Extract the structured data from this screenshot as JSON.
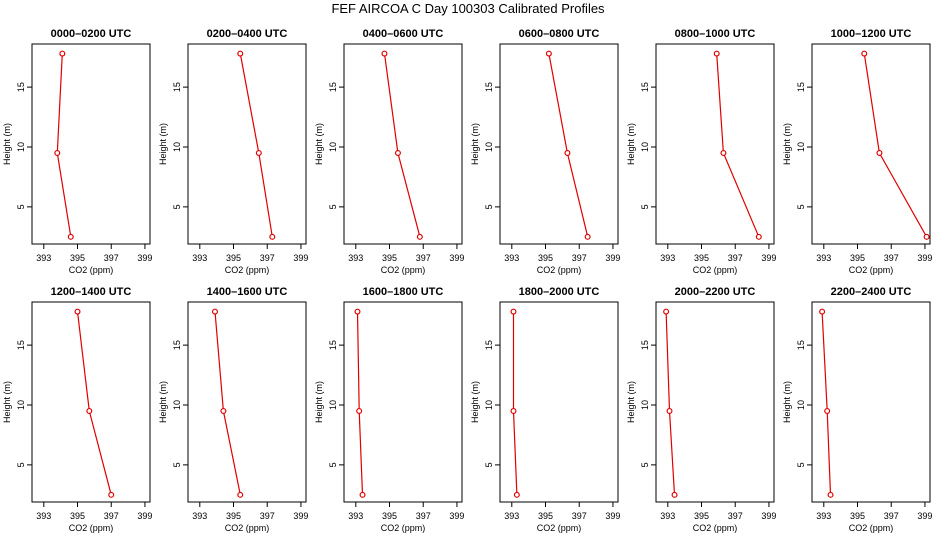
{
  "title": "FEF AIRCOA C  Day 100303  Calibrated Profiles",
  "colors": {
    "series": "#e00000",
    "axis": "#000000",
    "background": "#ffffff"
  },
  "chart_data": [
    {
      "type": "line",
      "title": "0000–0200 UTC",
      "xlabel": "CO2 (ppm)",
      "ylabel": "Height (m)",
      "xlim": [
        392.3,
        399.3
      ],
      "ylim": [
        1.9,
        18.6
      ],
      "xticks": [
        393,
        395,
        397,
        399
      ],
      "yticks": [
        5,
        10,
        15
      ],
      "x": [
        394.6,
        393.8,
        394.1
      ],
      "y": [
        2.5,
        9.5,
        17.8
      ]
    },
    {
      "type": "line",
      "title": "0200–0400 UTC",
      "xlabel": "CO2 (ppm)",
      "ylabel": "Height (m)",
      "xlim": [
        392.3,
        399.3
      ],
      "ylim": [
        1.9,
        18.6
      ],
      "xticks": [
        393,
        395,
        397,
        399
      ],
      "yticks": [
        5,
        10,
        15
      ],
      "x": [
        397.3,
        396.5,
        395.4
      ],
      "y": [
        2.5,
        9.5,
        17.8
      ]
    },
    {
      "type": "line",
      "title": "0400–0600 UTC",
      "xlabel": "CO2 (ppm)",
      "ylabel": "Height (m)",
      "xlim": [
        392.3,
        399.3
      ],
      "ylim": [
        1.9,
        18.6
      ],
      "xticks": [
        393,
        395,
        397,
        399
      ],
      "yticks": [
        5,
        10,
        15
      ],
      "x": [
        396.8,
        395.5,
        394.7
      ],
      "y": [
        2.5,
        9.5,
        17.8
      ]
    },
    {
      "type": "line",
      "title": "0600–0800 UTC",
      "xlabel": "CO2 (ppm)",
      "ylabel": "Height (m)",
      "xlim": [
        392.3,
        399.3
      ],
      "ylim": [
        1.9,
        18.6
      ],
      "xticks": [
        393,
        395,
        397,
        399
      ],
      "yticks": [
        5,
        10,
        15
      ],
      "x": [
        397.5,
        396.3,
        395.2
      ],
      "y": [
        2.5,
        9.5,
        17.8
      ]
    },
    {
      "type": "line",
      "title": "0800–1000 UTC",
      "xlabel": "CO2 (ppm)",
      "ylabel": "Height (m)",
      "xlim": [
        392.3,
        399.3
      ],
      "ylim": [
        1.9,
        18.6
      ],
      "xticks": [
        393,
        395,
        397,
        399
      ],
      "yticks": [
        5,
        10,
        15
      ],
      "x": [
        398.4,
        396.3,
        395.9
      ],
      "y": [
        2.5,
        9.5,
        17.8
      ]
    },
    {
      "type": "line",
      "title": "1000–1200 UTC",
      "xlabel": "CO2 (ppm)",
      "ylabel": "Height (m)",
      "xlim": [
        392.3,
        399.3
      ],
      "ylim": [
        1.9,
        18.6
      ],
      "xticks": [
        393,
        395,
        397,
        399
      ],
      "yticks": [
        5,
        10,
        15
      ],
      "x": [
        399.1,
        396.3,
        395.4
      ],
      "y": [
        2.5,
        9.5,
        17.8
      ]
    },
    {
      "type": "line",
      "title": "1200–1400 UTC",
      "xlabel": "CO2 (ppm)",
      "ylabel": "Height (m)",
      "xlim": [
        392.3,
        399.3
      ],
      "ylim": [
        1.9,
        18.6
      ],
      "xticks": [
        393,
        395,
        397,
        399
      ],
      "yticks": [
        5,
        10,
        15
      ],
      "x": [
        397.0,
        395.7,
        395.0
      ],
      "y": [
        2.5,
        9.5,
        17.8
      ]
    },
    {
      "type": "line",
      "title": "1400–1600 UTC",
      "xlabel": "CO2 (ppm)",
      "ylabel": "Height (m)",
      "xlim": [
        392.3,
        399.3
      ],
      "ylim": [
        1.9,
        18.6
      ],
      "xticks": [
        393,
        395,
        397,
        399
      ],
      "yticks": [
        5,
        10,
        15
      ],
      "x": [
        395.4,
        394.4,
        393.9
      ],
      "y": [
        2.5,
        9.5,
        17.8
      ]
    },
    {
      "type": "line",
      "title": "1600–1800 UTC",
      "xlabel": "CO2 (ppm)",
      "ylabel": "Height (m)",
      "xlim": [
        392.3,
        399.3
      ],
      "ylim": [
        1.9,
        18.6
      ],
      "xticks": [
        393,
        395,
        397,
        399
      ],
      "yticks": [
        5,
        10,
        15
      ],
      "x": [
        393.4,
        393.2,
        393.1
      ],
      "y": [
        2.5,
        9.5,
        17.8
      ]
    },
    {
      "type": "line",
      "title": "1800–2000 UTC",
      "xlabel": "CO2 (ppm)",
      "ylabel": "Height (m)",
      "xlim": [
        392.3,
        399.3
      ],
      "ylim": [
        1.9,
        18.6
      ],
      "xticks": [
        393,
        395,
        397,
        399
      ],
      "yticks": [
        5,
        10,
        15
      ],
      "x": [
        393.3,
        393.1,
        393.1
      ],
      "y": [
        2.5,
        9.5,
        17.8
      ]
    },
    {
      "type": "line",
      "title": "2000–2200 UTC",
      "xlabel": "CO2 (ppm)",
      "ylabel": "Height (m)",
      "xlim": [
        392.3,
        399.3
      ],
      "ylim": [
        1.9,
        18.6
      ],
      "xticks": [
        393,
        395,
        397,
        399
      ],
      "yticks": [
        5,
        10,
        15
      ],
      "x": [
        393.4,
        393.1,
        392.9
      ],
      "y": [
        2.5,
        9.5,
        17.8
      ]
    },
    {
      "type": "line",
      "title": "2200–2400 UTC",
      "xlabel": "CO2 (ppm)",
      "ylabel": "Height (m)",
      "xlim": [
        392.3,
        399.3
      ],
      "ylim": [
        1.9,
        18.6
      ],
      "xticks": [
        393,
        395,
        397,
        399
      ],
      "yticks": [
        5,
        10,
        15
      ],
      "x": [
        393.4,
        393.2,
        392.9
      ],
      "y": [
        2.5,
        9.5,
        17.8
      ]
    }
  ]
}
